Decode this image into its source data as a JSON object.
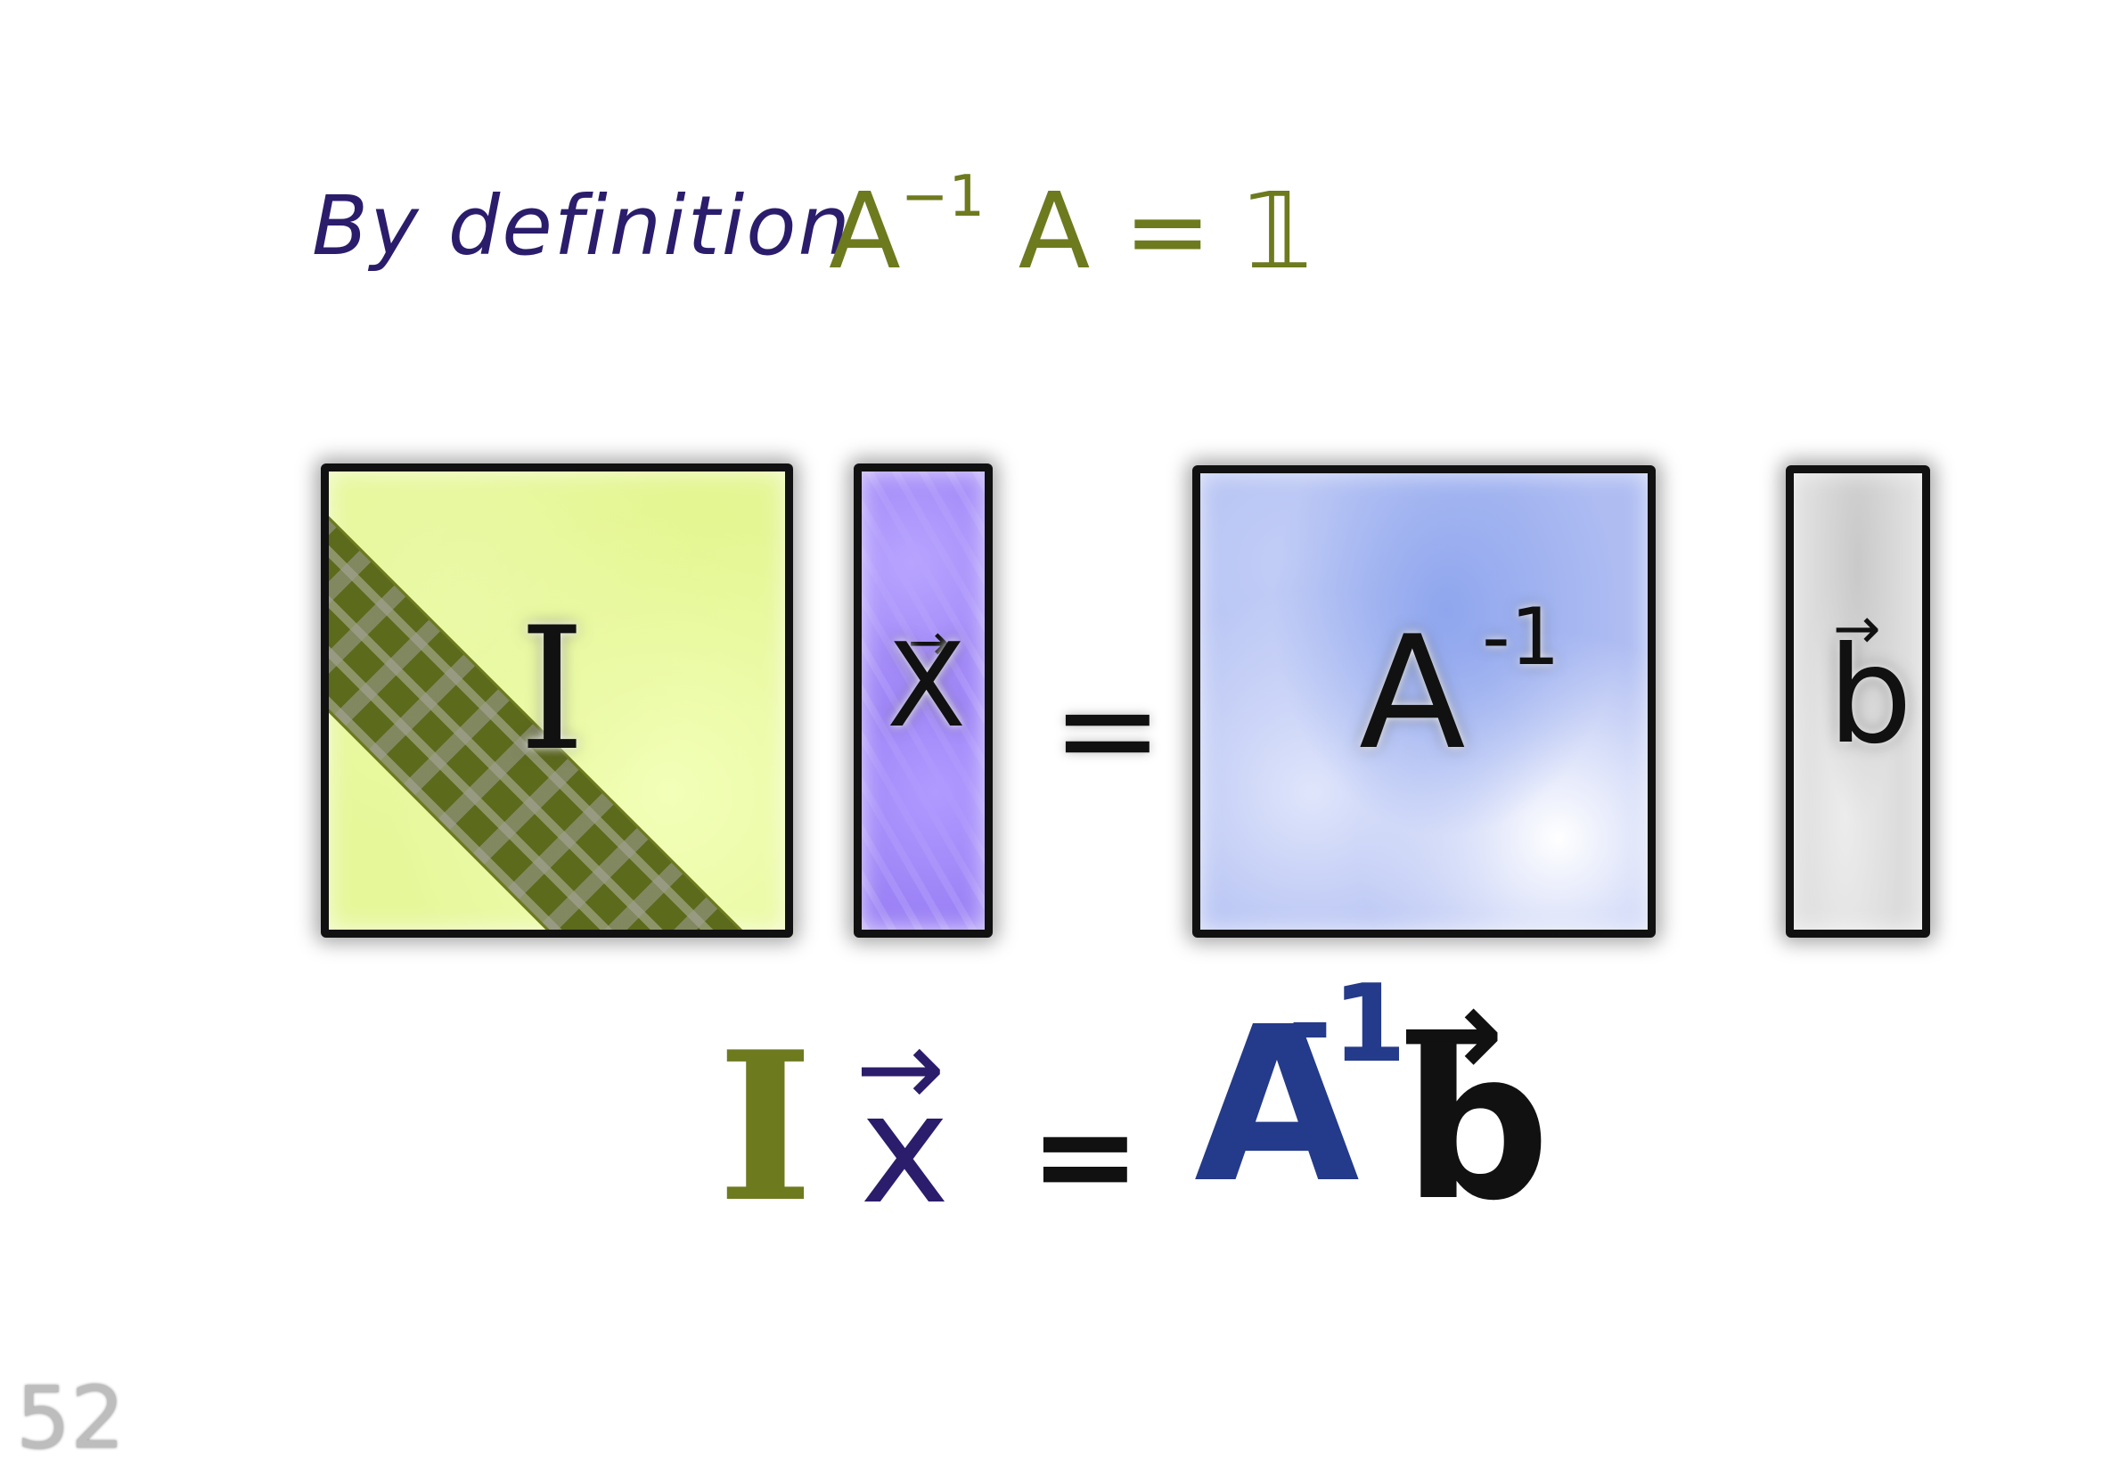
{
  "header": {
    "text": "By definition",
    "equation_lhs": "A",
    "equation_sup": "−1",
    "equation_rhs": "A = 𝟙"
  },
  "matrices": {
    "identity_symbol": "I",
    "vector_x_symbol": "X",
    "vector_x_arrow": "→",
    "equals_symbol": "=",
    "inverse_symbol": "A",
    "inverse_sup": "-1",
    "vector_b_symbol": "b",
    "vector_b_arrow": "→"
  },
  "result_equation": {
    "identity": "I",
    "x": "x",
    "x_arrow": "→",
    "equals": "=",
    "inverse": "A",
    "inverse_sup": "-1",
    "b": "b",
    "b_arrow": "→"
  },
  "page_number": "52",
  "colors": {
    "header_text": "#2b1d6b",
    "olive": "#6e7a1e",
    "identity_fill": "#e6f79a",
    "vector_x_fill": "#9a80f5",
    "inverse_fill": "#aebcf2",
    "vector_b_fill": "#dcdcdc",
    "inverse_result": "#243a8a"
  }
}
